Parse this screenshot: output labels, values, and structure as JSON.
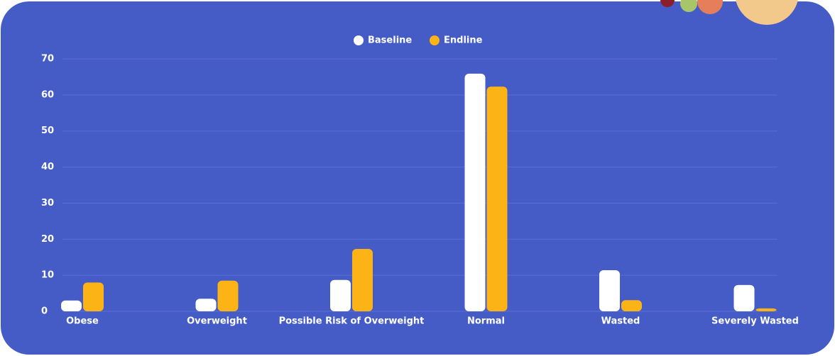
{
  "chart_data": {
    "type": "bar",
    "categories": [
      "Obese",
      "Overweight",
      "Possible Risk of Overweight",
      "Normal",
      "Wasted",
      "Severely Wasted"
    ],
    "series": [
      {
        "name": "Baseline",
        "color": "#ffffff",
        "values": [
          3.0,
          3.5,
          8.7,
          65.9,
          11.4,
          7.3
        ]
      },
      {
        "name": "Endline",
        "color": "#fbb316",
        "values": [
          8.0,
          8.5,
          17.3,
          62.3,
          3.1,
          0.8
        ]
      }
    ],
    "ylim": [
      0,
      70
    ],
    "yticks": [
      0,
      10,
      20,
      30,
      40,
      50,
      60,
      70
    ],
    "grid": true,
    "legend": "top"
  }
}
